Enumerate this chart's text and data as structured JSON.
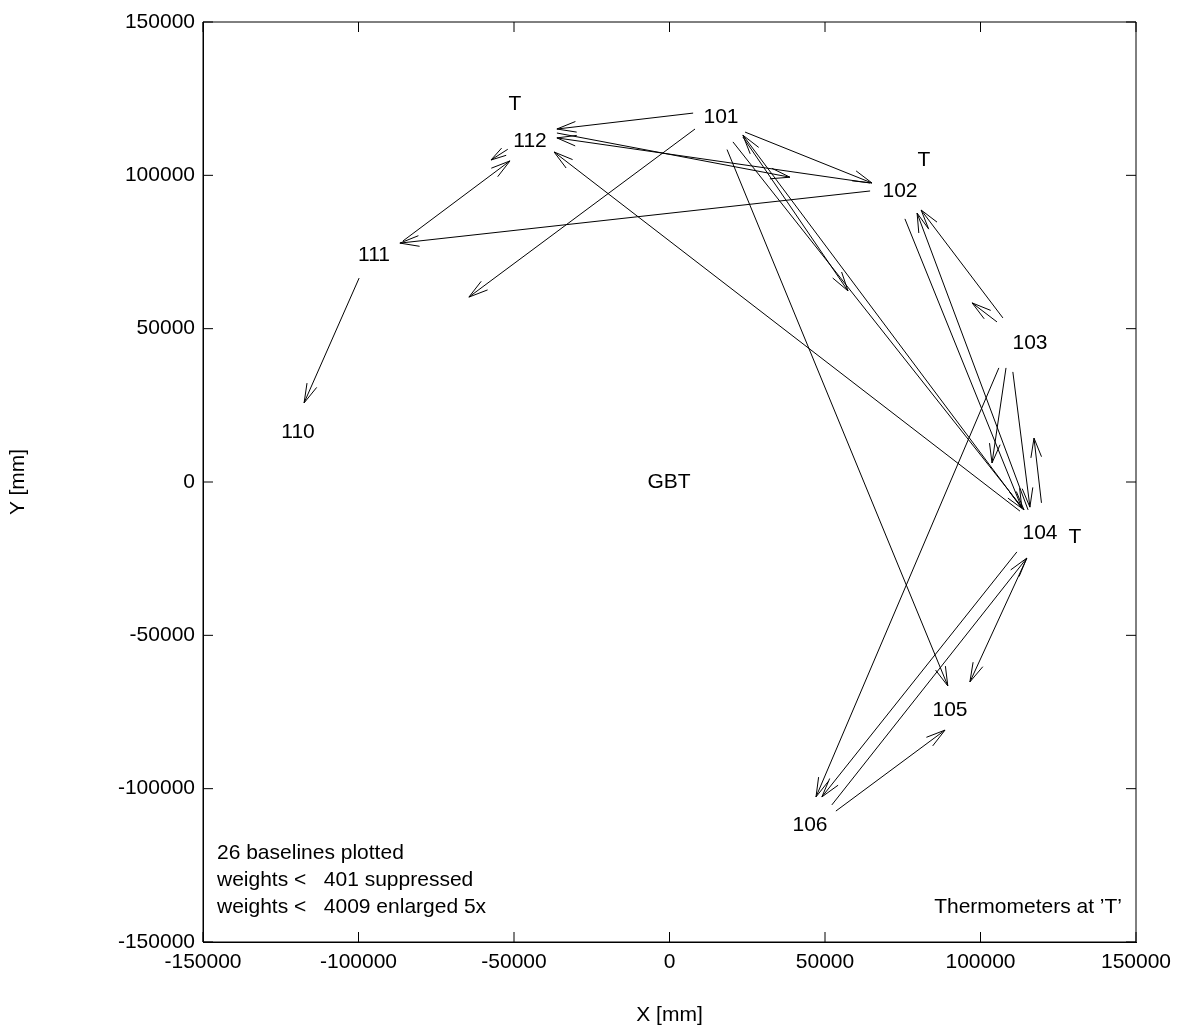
{
  "chart_data": {
    "type": "line",
    "xlabel": "X [mm]",
    "ylabel": "Y [mm]",
    "xlim": [
      -150000,
      150000
    ],
    "ylim": [
      -150000,
      150000
    ],
    "xticks": [
      -150000,
      -100000,
      -50000,
      0,
      50000,
      100000,
      150000
    ],
    "yticks": [
      -150000,
      -100000,
      -50000,
      0,
      50000,
      100000,
      150000
    ],
    "grid": false,
    "legend": false,
    "marker": "none",
    "line_style": "solid",
    "series": [
      {
        "color": "#000000",
        "x": [
          7600,
          -36200
        ],
        "values": [
          120300,
          115100
        ]
      },
      {
        "color": "#000000",
        "x": [
          64500,
          -36200
        ],
        "values": [
          97500,
          112200
        ]
      },
      {
        "color": "#000000",
        "x": [
          8200,
          -64500
        ],
        "values": [
          115100,
          60300
        ]
      },
      {
        "color": "#000000",
        "x": [
          112700,
          -37100
        ],
        "values": [
          -9500,
          107600
        ]
      },
      {
        "color": "#000000",
        "x": [
          -85700,
          -51300
        ],
        "values": [
          78600,
          104700
        ]
      },
      {
        "color": "#000000",
        "x": [
          -52000,
          -57400
        ],
        "values": [
          108500,
          105000
        ]
      },
      {
        "color": "#000000",
        "x": [
          64500,
          -86700
        ],
        "values": [
          94900,
          77900
        ]
      },
      {
        "color": "#000000",
        "x": [
          -99800,
          -117500
        ],
        "values": [
          66500,
          25800
        ]
      },
      {
        "color": "#000000",
        "x": [
          24300,
          65100
        ],
        "values": [
          114100,
          97500
        ]
      },
      {
        "color": "#000000",
        "x": [
          -36200,
          38700
        ],
        "values": [
          113800,
          99400
        ]
      },
      {
        "color": "#000000",
        "x": [
          23600,
          57400
        ],
        "values": [
          112500,
          62300
        ]
      },
      {
        "color": "#000000",
        "x": [
          18500,
          89500
        ],
        "values": [
          108400,
          -66500
        ]
      },
      {
        "color": "#000000",
        "x": [
          113300,
          23600
        ],
        "values": [
          -8500,
          113100
        ]
      },
      {
        "color": "#000000",
        "x": [
          20400,
          114000
        ],
        "values": [
          110900,
          -9100
        ]
      },
      {
        "color": "#000000",
        "x": [
          107200,
          80900
        ],
        "values": [
          53500,
          88700
        ]
      },
      {
        "color": "#000000",
        "x": [
          105300,
          97300
        ],
        "values": [
          52200,
          58400
        ]
      },
      {
        "color": "#000000",
        "x": [
          75700,
          113300
        ],
        "values": [
          85800,
          -8500
        ]
      },
      {
        "color": "#000000",
        "x": [
          115300,
          79600
        ],
        "values": [
          -9100,
          87700
        ]
      },
      {
        "color": "#000000",
        "x": [
          105900,
          47100
        ],
        "values": [
          37200,
          -102700
        ]
      },
      {
        "color": "#000000",
        "x": [
          108200,
          103700
        ],
        "values": [
          37200,
          6200
        ]
      },
      {
        "color": "#000000",
        "x": [
          110400,
          115900
        ],
        "values": [
          35900,
          -8200
        ]
      },
      {
        "color": "#000000",
        "x": [
          119600,
          117200
        ],
        "values": [
          -6800,
          14300
        ]
      },
      {
        "color": "#000000",
        "x": [
          111700,
          49000
        ],
        "values": [
          -22800,
          -102700
        ]
      },
      {
        "color": "#000000",
        "x": [
          52200,
          114900
        ],
        "values": [
          -105300,
          -24800
        ]
      },
      {
        "color": "#000000",
        "x": [
          114900,
          96600
        ],
        "values": [
          -24800,
          -65200
        ]
      },
      {
        "color": "#000000",
        "x": [
          53500,
          88600
        ],
        "values": [
          -107300,
          -80900
        ]
      }
    ],
    "annotations": [
      "101",
      "102",
      "103",
      "104",
      "105",
      "106",
      "110",
      "111",
      "112",
      "T",
      "T",
      "T",
      "GBT",
      "26 baselines plotted",
      "weights <   401 suppressed",
      "weights <   4009 enlarged 5x",
      "Thermometers at ’T’"
    ]
  }
}
